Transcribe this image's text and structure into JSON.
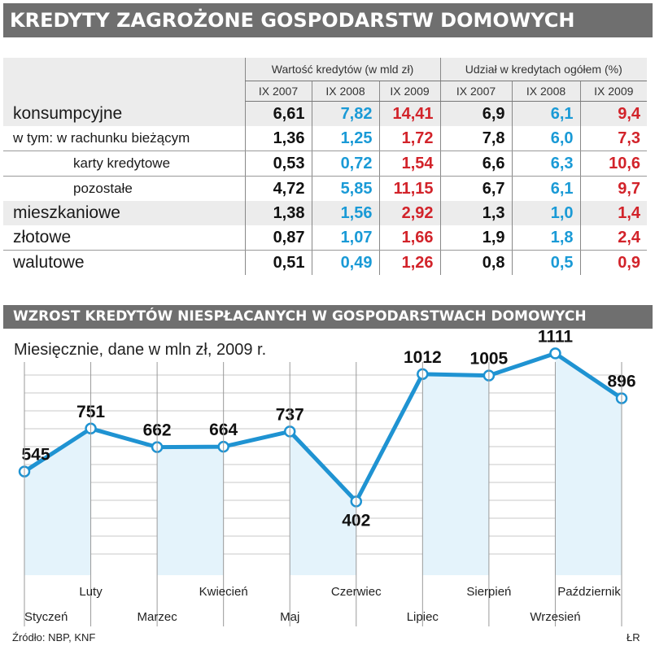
{
  "title": "KREDYTY ZAGROŻONE GOSPODARSTW DOMOWYCH",
  "table": {
    "group_headers": [
      "Wartość kredytów (w mld zł)",
      "Udział w kredytach ogółem (%)"
    ],
    "years": [
      "IX 2007",
      "IX 2008",
      "IX 2009",
      "IX 2007",
      "IX 2008",
      "IX 2009"
    ],
    "rows": [
      {
        "label": "konsumpcyjne",
        "values": [
          "6,61",
          "7,82",
          "14,41",
          "6,9",
          "6,1",
          "9,4"
        ]
      },
      {
        "label": "w tym: w rachunku bieżącym",
        "values": [
          "1,36",
          "1,25",
          "1,72",
          "7,8",
          "6,0",
          "7,3"
        ]
      },
      {
        "label": "karty kredytowe",
        "values": [
          "0,53",
          "0,72",
          "1,54",
          "6,6",
          "6,3",
          "10,6"
        ]
      },
      {
        "label": "pozostałe",
        "values": [
          "4,72",
          "5,85",
          "11,15",
          "6,7",
          "6,1",
          "9,7"
        ]
      },
      {
        "label": "mieszkaniowe",
        "values": [
          "1,38",
          "1,56",
          "2,92",
          "1,3",
          "1,0",
          "1,4"
        ]
      },
      {
        "label": "złotowe",
        "values": [
          "0,87",
          "1,07",
          "1,66",
          "1,9",
          "1,8",
          "2,4"
        ]
      },
      {
        "label": "walutowe",
        "values": [
          "0,51",
          "0,49",
          "1,26",
          "0,8",
          "0,5",
          "0,9"
        ]
      }
    ],
    "colors": {
      "IX 2007": "#111111",
      "IX 2008": "#1a9ad6",
      "IX 2009": "#d2232a"
    }
  },
  "chart_data": {
    "type": "line",
    "title": "WZROST KREDYTÓW NIESPŁACANYCH W GOSPODARSTWACH DOMOWYCH",
    "subtitle": "Miesięcznie, dane w mln zł, 2009 r.",
    "categories": [
      "Styczeń",
      "Luty",
      "Marzec",
      "Kwiecień",
      "Maj",
      "Czerwiec",
      "Lipiec",
      "Sierpień",
      "Wrzesień",
      "Październik"
    ],
    "values": [
      545,
      751,
      662,
      664,
      737,
      402,
      1012,
      1005,
      1111,
      896
    ],
    "line_color": "#1f93d2",
    "fill_color": "#e4f3fb",
    "grid": true
  },
  "source": "Źródło: NBP, KNF",
  "author": "ŁR"
}
